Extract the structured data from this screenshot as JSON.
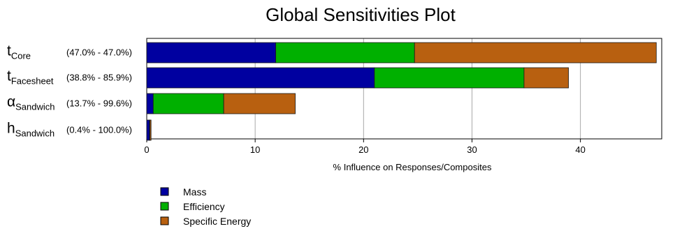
{
  "chart_data": {
    "type": "bar",
    "orientation": "horizontal",
    "stacked": true,
    "title": "Global Sensitivities Plot",
    "xlabel": "% Influence on Responses/Composites",
    "ylabel": "",
    "xlim": [
      0,
      47.5
    ],
    "xticks": [
      0,
      10,
      20,
      30,
      40
    ],
    "grid": "vertical",
    "legend_position": "bottom-left",
    "categories": [
      {
        "main": "t",
        "sub": "Core",
        "range": "(47.0% - 47.0%)"
      },
      {
        "main": "t",
        "sub": "Facesheet",
        "range": "(38.8% - 85.9%)"
      },
      {
        "main": "α",
        "sub": "Sandwich",
        "range": "(13.7% - 99.6%)"
      },
      {
        "main": "h",
        "sub": "Sandwich",
        "range": "(0.4% - 100.0%)"
      }
    ],
    "series": [
      {
        "name": "Mass",
        "color": "#0000a0",
        "values": [
          11.9,
          21.0,
          0.6,
          0.25
        ]
      },
      {
        "name": "Efficiency",
        "color": "#00b000",
        "values": [
          12.8,
          13.8,
          6.5,
          0.05
        ]
      },
      {
        "name": "Specific Energy",
        "color": "#b86010",
        "values": [
          22.3,
          4.1,
          6.6,
          0.1
        ]
      }
    ]
  }
}
